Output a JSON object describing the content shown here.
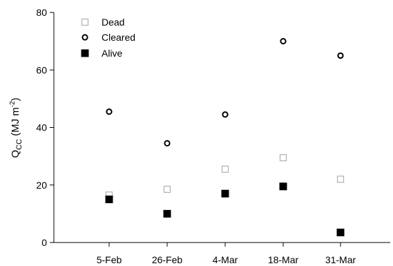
{
  "chart_data": {
    "type": "scatter",
    "title": "",
    "xlabel": "",
    "ylabel": {
      "main": "Q",
      "sub": "CC",
      "unit_prefix": " (MJ m",
      "unit_sup": "-2",
      "unit_suffix": ")"
    },
    "categories": [
      "5-Feb",
      "26-Feb",
      "4-Mar",
      "18-Mar",
      "31-Mar"
    ],
    "ylim": [
      0,
      80
    ],
    "yticks": [
      0,
      20,
      40,
      60,
      80
    ],
    "grid": false,
    "legend": "top-left",
    "series": [
      {
        "name": "Dead",
        "marker": "open-square",
        "color": "#b0b0b0",
        "values": [
          16.5,
          18.5,
          25.5,
          29.5,
          22
        ]
      },
      {
        "name": "Cleared",
        "marker": "open-circle",
        "color": "#000000",
        "values": [
          45.5,
          34.5,
          44.5,
          70,
          65
        ]
      },
      {
        "name": "Alive",
        "marker": "filled-square",
        "color": "#000000",
        "values": [
          15,
          10,
          17,
          19.5,
          3.5
        ]
      }
    ]
  }
}
